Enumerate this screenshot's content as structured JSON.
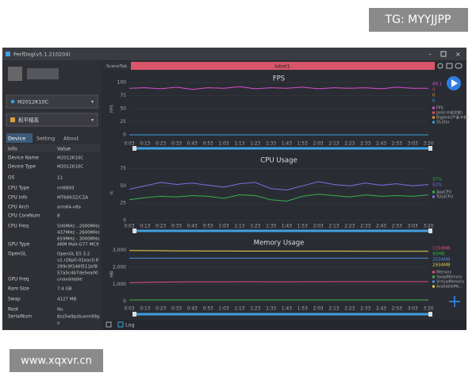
{
  "watermarks": {
    "top": "TG: MYYJJPP",
    "bottom": "www.xqxvr.cn"
  },
  "app": {
    "title": "PerfDog(v5.1.210204)",
    "device": "M2012K10C",
    "game": "和平精英",
    "tabs": [
      "Device",
      "Setting",
      "About"
    ],
    "scene_tab": "SceneTab",
    "label": "label1",
    "log": "Log",
    "table": {
      "header": [
        "Info",
        "Value"
      ],
      "rows": [
        [
          "Device Name",
          [
            "M2012K10C"
          ]
        ],
        [
          "Device Type",
          [
            "M2012K10C"
          ]
        ],
        [
          "OS",
          [
            "11"
          ]
        ],
        [
          "CPU Type",
          [
            "mt6893"
          ]
        ],
        [
          "CPU Info",
          [
            "MT6893Z/CZA"
          ]
        ],
        [
          "CPU Arch",
          [
            "arm64-v8a"
          ]
        ],
        [
          "CPU CoreNum",
          [
            "8"
          ]
        ],
        [
          "CPU Freq",
          [
            "500MHz - 2000MHz",
            "437MHz - 2600MHz",
            "659MHz - 3000MHz"
          ]
        ],
        [
          "GPU Type",
          [
            "ARM Mali-G77 MC9"
          ]
        ],
        [
          "OpenGL",
          [
            "OpenGL ES 3.2",
            "v1.r26p0-01eac0.8",
            "289c9f246f511bf8",
            "57a5c4b7de5ea00"
          ]
        ],
        [
          "GPU Freq",
          [
            "unavailable"
          ]
        ],
        [
          "Ram Size",
          [
            "7.4 GB"
          ]
        ],
        [
          "Swap",
          [
            "4127 MB"
          ]
        ],
        [
          "Root",
          [
            "No"
          ]
        ],
        [
          "SerialNum",
          [
            "8zz5w9pzbuem99g",
            "u"
          ]
        ]
      ]
    }
  },
  "chart_data": [
    {
      "type": "line",
      "title": "FPS",
      "ylabel": "FPS",
      "ylim": [
        0,
        100
      ],
      "yticks": [
        0,
        25,
        50,
        75,
        100
      ],
      "categories": [
        "0:03",
        "0:13",
        "0:23",
        "0:33",
        "0:43",
        "0:53",
        "1:03",
        "1:13",
        "1:23",
        "1:33",
        "1:43",
        "1:53",
        "2:03",
        "2:13",
        "2:23",
        "2:33",
        "2:43",
        "2:53",
        "3:03",
        "3:20"
      ],
      "series": [
        {
          "name": "FPS",
          "color": "#d64fd0",
          "readout": "89.1",
          "values": [
            89,
            90,
            88,
            91,
            87,
            90,
            89,
            92,
            88,
            90,
            89,
            91,
            88,
            90,
            89,
            90,
            88,
            91,
            89,
            89
          ]
        },
        {
          "name": "Jank(卡顿次数)",
          "color": "#e0505a",
          "readout": "0",
          "values": [
            0,
            0,
            0,
            0,
            0,
            0,
            0,
            0,
            0,
            0,
            0,
            0,
            0,
            0,
            0,
            0,
            0,
            0,
            0,
            0
          ]
        },
        {
          "name": "BigJank(严重卡顿)",
          "color": "#e39a3a",
          "readout": "0",
          "values": [
            0,
            0,
            0,
            0,
            0,
            0,
            0,
            0,
            0,
            0,
            0,
            0,
            0,
            0,
            0,
            0,
            0,
            0,
            0,
            0
          ]
        },
        {
          "name": "Stutter",
          "color": "#3fa0e0",
          "readout": "0",
          "values": [
            0,
            0,
            0,
            0,
            0,
            0,
            0,
            0,
            0,
            0,
            0,
            0,
            0,
            0,
            0,
            0,
            0,
            0,
            0,
            0
          ]
        }
      ]
    },
    {
      "type": "line",
      "title": "CPU Usage",
      "ylabel": "%",
      "ylim": [
        0,
        80
      ],
      "yticks": [
        0,
        25,
        50,
        75
      ],
      "categories": [
        "0:03",
        "0:13",
        "0:23",
        "0:33",
        "0:43",
        "0:53",
        "1:03",
        "1:13",
        "1:23",
        "1:33",
        "1:43",
        "1:53",
        "2:03",
        "2:13",
        "2:23",
        "2:33",
        "2:43",
        "2:53",
        "3:03",
        "3:20"
      ],
      "series": [
        {
          "name": "AppCPU",
          "color": "#35b04a",
          "readout": "37%",
          "values": [
            30,
            33,
            35,
            34,
            36,
            35,
            32,
            37,
            36,
            30,
            28,
            35,
            38,
            36,
            34,
            37,
            35,
            36,
            35,
            37
          ]
        },
        {
          "name": "TotalCPU",
          "color": "#7b6fe0",
          "readout": "52%",
          "values": [
            45,
            50,
            55,
            52,
            54,
            51,
            48,
            53,
            55,
            46,
            44,
            50,
            56,
            52,
            50,
            54,
            51,
            53,
            50,
            52
          ]
        }
      ]
    },
    {
      "type": "line",
      "title": "Memory Usage",
      "ylabel": "MB",
      "ylim": [
        0,
        3200
      ],
      "yticks": [
        0,
        {
          "value": 1000,
          "label": "1,000"
        },
        {
          "value": 2000,
          "label": "2,000"
        },
        {
          "value": 3000,
          "label": "3,000"
        }
      ],
      "categories": [
        "0:03",
        "0:13",
        "0:23",
        "0:33",
        "0:43",
        "0:53",
        "1:03",
        "1:13",
        "1:23",
        "1:33",
        "1:43",
        "1:53",
        "2:03",
        "2:13",
        "2:23",
        "2:33",
        "2:43",
        "2:53",
        "3:03",
        "3:20"
      ],
      "series": [
        {
          "name": "Memory",
          "color": "#e0507a",
          "readout": "1159MB",
          "values": [
            1100,
            1120,
            1130,
            1140,
            1150,
            1150,
            1150,
            1155,
            1155,
            1150,
            1152,
            1155,
            1156,
            1158,
            1158,
            1158,
            1159,
            1159,
            1159,
            1159
          ]
        },
        {
          "name": "SwapMemory",
          "color": "#3cb44b",
          "readout": "95MB",
          "values": [
            95,
            95,
            95,
            95,
            95,
            95,
            95,
            95,
            95,
            95,
            95,
            95,
            95,
            95,
            95,
            95,
            95,
            95,
            95,
            95
          ]
        },
        {
          "name": "VirtualMemory",
          "color": "#4a8fe0",
          "readout": "2534MB",
          "values": [
            2530,
            2530,
            2531,
            2531,
            2532,
            2532,
            2532,
            2533,
            2533,
            2533,
            2533,
            2533,
            2534,
            2534,
            2534,
            2534,
            2534,
            2534,
            2534,
            2534
          ]
        },
        {
          "name": "AvailableMe...",
          "color": "#e8d04a",
          "readout": "2934MB",
          "values": [
            2980,
            2975,
            2970,
            2960,
            2955,
            2950,
            2948,
            2945,
            2945,
            2944,
            2942,
            2940,
            2940,
            2938,
            2938,
            2936,
            2935,
            2935,
            2934,
            2934
          ]
        }
      ]
    }
  ]
}
